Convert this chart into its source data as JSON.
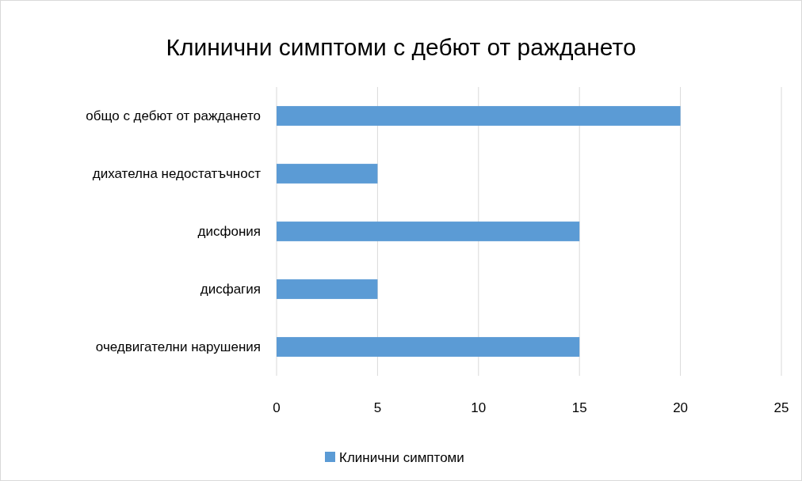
{
  "chart_data": {
    "type": "bar",
    "title": "Клинични симптоми с дебют от раждането",
    "orientation": "horizontal",
    "categories": [
      "общо с дебют от раждането",
      "дихателна недостатъчност",
      "дисфония",
      "дисфагия",
      "очедвигателни нарушения"
    ],
    "series": [
      {
        "name": "Клинични симптоми",
        "color": "#5b9bd5",
        "values": [
          20,
          5,
          15,
          5,
          15
        ]
      }
    ],
    "xlim": [
      0,
      25
    ],
    "xticks": [
      0,
      5,
      10,
      15,
      20,
      25
    ],
    "grid": "x",
    "legend": "bottom"
  }
}
